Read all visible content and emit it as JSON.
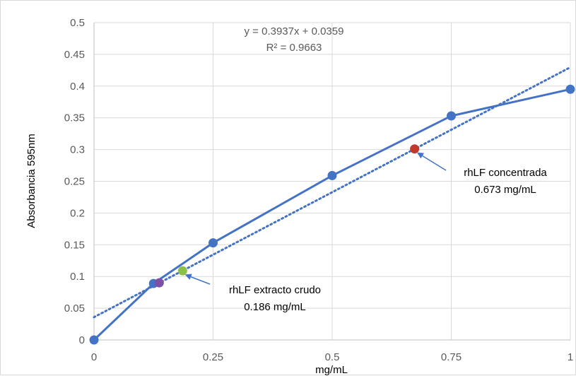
{
  "chart_data": {
    "type": "scatter",
    "xlabel": "mg/mL",
    "ylabel": "Absorbancia 595nm",
    "xlim": [
      0,
      1
    ],
    "ylim": [
      0,
      0.5
    ],
    "x_ticks": [
      "0",
      "0.25",
      "0.5",
      "0.75",
      "1"
    ],
    "x_tick_values": [
      0,
      0.25,
      0.5,
      0.75,
      1
    ],
    "y_ticks": [
      "0",
      "0.05",
      "0.1",
      "0.15",
      "0.2",
      "0.25",
      "0.3",
      "0.35",
      "0.4",
      "0.45",
      "0.5"
    ],
    "y_tick_values": [
      0,
      0.05,
      0.1,
      0.15,
      0.2,
      0.25,
      0.3,
      0.35,
      0.4,
      0.45,
      0.5
    ],
    "grid": true,
    "legend": "none",
    "series": [
      {
        "kind": "line-markers",
        "color": "#4472c4",
        "x": [
          0,
          0.125,
          0.25,
          0.5,
          0.75,
          1
        ],
        "y": [
          0,
          0.089,
          0.153,
          0.259,
          0.353,
          0.395
        ]
      }
    ],
    "trendline": {
      "type": "linear",
      "slope": 0.3937,
      "intercept": 0.0359,
      "color": "#4472c4",
      "style": "dotted",
      "equation": "y = 0.3937x + 0.0359",
      "r2": "R² = 0.9663"
    },
    "extra_points": [
      {
        "x": 0.137,
        "y": 0.09,
        "color": "#7f4fa8"
      },
      {
        "x": 0.186,
        "y": 0.109,
        "color": "#8dc04a"
      },
      {
        "x": 0.673,
        "y": 0.301,
        "color": "#c0392b"
      }
    ],
    "annotations": [
      {
        "line1": "rhLF extracto crudo",
        "line2": "0.186 mg/mL",
        "target_x": 0.186,
        "target_y": 0.109
      },
      {
        "line1": "rhLF concentrada",
        "line2": "0.673 mg/mL",
        "target_x": 0.673,
        "target_y": 0.301
      }
    ]
  }
}
